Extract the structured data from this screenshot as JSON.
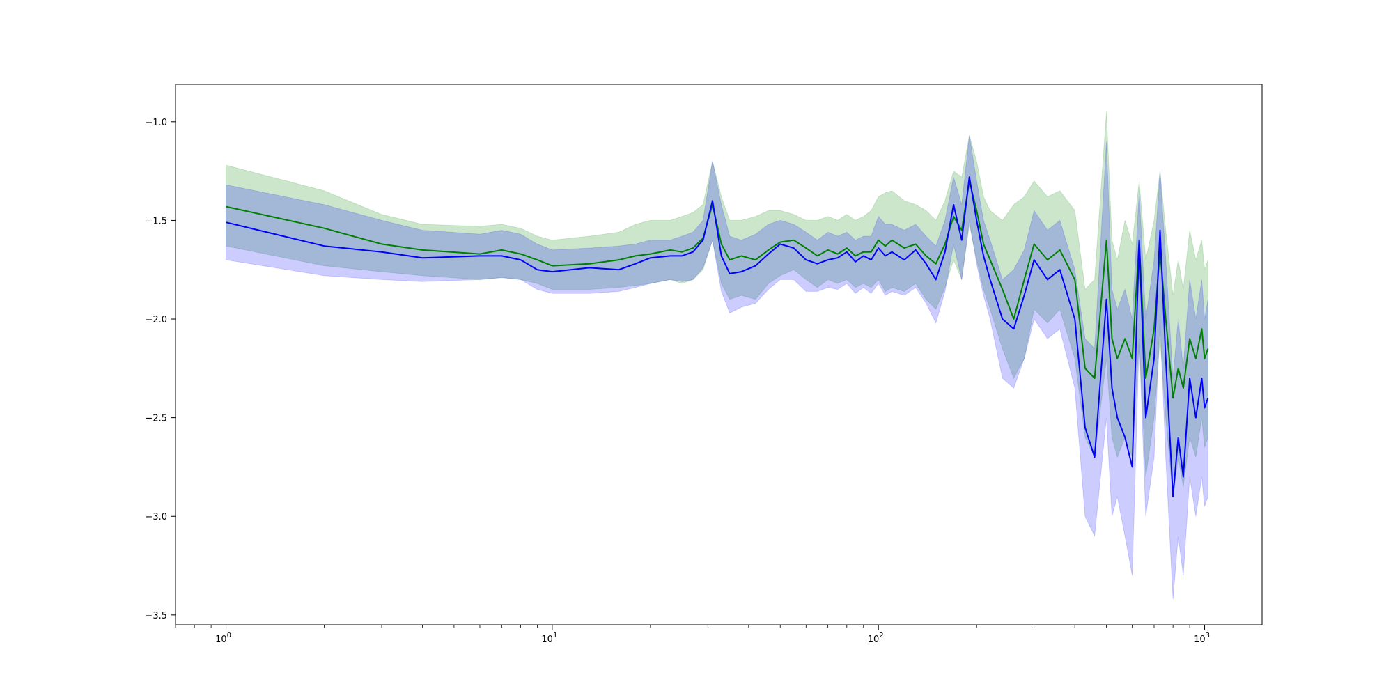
{
  "chart_data": {
    "type": "line",
    "title": "",
    "xlabel": "",
    "ylabel": "",
    "x_scale": "log",
    "xlim": [
      0.7,
      1500
    ],
    "ylim": [
      -3.55,
      -0.81
    ],
    "grid": false,
    "x_ticks": [
      {
        "value": 1,
        "base": "10",
        "exp": "0"
      },
      {
        "value": 10,
        "base": "10",
        "exp": "1"
      },
      {
        "value": 100,
        "base": "10",
        "exp": "2"
      },
      {
        "value": 1000,
        "base": "10",
        "exp": "3"
      }
    ],
    "y_ticks": [
      {
        "value": -1.0,
        "label": "−1.0"
      },
      {
        "value": -1.5,
        "label": "−1.5"
      },
      {
        "value": -2.0,
        "label": "−2.0"
      },
      {
        "value": -2.5,
        "label": "−2.5"
      },
      {
        "value": -3.0,
        "label": "−3.0"
      },
      {
        "value": -3.5,
        "label": "−3.5"
      }
    ],
    "series": [
      {
        "color": "#008000",
        "band_color": "#008000",
        "x": [
          1,
          2,
          3,
          4,
          6,
          7,
          8,
          9,
          10,
          13,
          16,
          18,
          20,
          23,
          25,
          27,
          29,
          31,
          33,
          35,
          38,
          42,
          46,
          50,
          55,
          60,
          65,
          70,
          75,
          80,
          85,
          90,
          95,
          100,
          105,
          110,
          120,
          130,
          140,
          150,
          160,
          170,
          180,
          190,
          200,
          210,
          220,
          240,
          260,
          280,
          300,
          330,
          360,
          400,
          430,
          460,
          500,
          520,
          540,
          570,
          600,
          630,
          660,
          700,
          730,
          760,
          800,
          830,
          860,
          900,
          940,
          980,
          1000,
          1024
        ],
        "mean": [
          -1.43,
          -1.54,
          -1.62,
          -1.65,
          -1.67,
          -1.65,
          -1.67,
          -1.7,
          -1.73,
          -1.72,
          -1.7,
          -1.68,
          -1.67,
          -1.65,
          -1.66,
          -1.64,
          -1.59,
          -1.42,
          -1.62,
          -1.7,
          -1.68,
          -1.7,
          -1.65,
          -1.61,
          -1.6,
          -1.64,
          -1.68,
          -1.65,
          -1.67,
          -1.64,
          -1.68,
          -1.66,
          -1.66,
          -1.6,
          -1.63,
          -1.6,
          -1.64,
          -1.62,
          -1.68,
          -1.72,
          -1.62,
          -1.48,
          -1.55,
          -1.3,
          -1.45,
          -1.62,
          -1.7,
          -1.85,
          -2.0,
          -1.8,
          -1.62,
          -1.7,
          -1.65,
          -1.8,
          -2.25,
          -2.3,
          -1.6,
          -2.1,
          -2.2,
          -2.1,
          -2.2,
          -1.6,
          -2.3,
          -2.05,
          -1.65,
          -2.0,
          -2.4,
          -2.25,
          -2.35,
          -2.1,
          -2.2,
          -2.05,
          -2.2,
          -2.15
        ],
        "upper": [
          -1.22,
          -1.35,
          -1.47,
          -1.52,
          -1.53,
          -1.52,
          -1.54,
          -1.58,
          -1.6,
          -1.58,
          -1.56,
          -1.52,
          -1.5,
          -1.5,
          -1.48,
          -1.46,
          -1.42,
          -1.2,
          -1.38,
          -1.5,
          -1.5,
          -1.48,
          -1.45,
          -1.45,
          -1.47,
          -1.5,
          -1.5,
          -1.48,
          -1.5,
          -1.47,
          -1.5,
          -1.48,
          -1.45,
          -1.38,
          -1.36,
          -1.35,
          -1.4,
          -1.42,
          -1.45,
          -1.5,
          -1.4,
          -1.25,
          -1.28,
          -1.07,
          -1.2,
          -1.38,
          -1.45,
          -1.5,
          -1.42,
          -1.38,
          -1.3,
          -1.38,
          -1.35,
          -1.45,
          -1.85,
          -1.8,
          -0.95,
          -1.6,
          -1.7,
          -1.5,
          -1.62,
          -1.3,
          -1.7,
          -1.5,
          -1.25,
          -1.55,
          -1.88,
          -1.7,
          -1.85,
          -1.55,
          -1.7,
          -1.6,
          -1.75,
          -1.7
        ],
        "lower": [
          -1.63,
          -1.73,
          -1.76,
          -1.78,
          -1.8,
          -1.79,
          -1.8,
          -1.82,
          -1.85,
          -1.85,
          -1.84,
          -1.83,
          -1.82,
          -1.8,
          -1.82,
          -1.8,
          -1.75,
          -1.6,
          -1.82,
          -1.9,
          -1.88,
          -1.9,
          -1.82,
          -1.78,
          -1.75,
          -1.8,
          -1.84,
          -1.8,
          -1.82,
          -1.8,
          -1.84,
          -1.82,
          -1.84,
          -1.8,
          -1.86,
          -1.84,
          -1.86,
          -1.82,
          -1.9,
          -1.95,
          -1.84,
          -1.7,
          -1.8,
          -1.52,
          -1.7,
          -1.85,
          -1.95,
          -2.15,
          -2.3,
          -2.2,
          -1.95,
          -2.02,
          -1.95,
          -2.2,
          -2.6,
          -2.7,
          -2.2,
          -2.6,
          -2.7,
          -2.6,
          -2.7,
          -2.1,
          -2.8,
          -2.5,
          -2.1,
          -2.5,
          -2.9,
          -2.7,
          -2.85,
          -2.6,
          -2.7,
          -2.5,
          -2.65,
          -2.6
        ]
      },
      {
        "color": "#0000ff",
        "band_color": "#0000ff",
        "x": [
          1,
          2,
          3,
          4,
          6,
          7,
          8,
          9,
          10,
          13,
          16,
          18,
          20,
          23,
          25,
          27,
          29,
          31,
          33,
          35,
          38,
          42,
          46,
          50,
          55,
          60,
          65,
          70,
          75,
          80,
          85,
          90,
          95,
          100,
          105,
          110,
          120,
          130,
          140,
          150,
          160,
          170,
          180,
          190,
          200,
          210,
          220,
          240,
          260,
          280,
          300,
          330,
          360,
          400,
          430,
          460,
          500,
          520,
          540,
          570,
          600,
          630,
          660,
          700,
          730,
          760,
          800,
          830,
          860,
          900,
          940,
          980,
          1000,
          1024
        ],
        "mean": [
          -1.51,
          -1.63,
          -1.66,
          -1.69,
          -1.68,
          -1.68,
          -1.7,
          -1.75,
          -1.76,
          -1.74,
          -1.75,
          -1.72,
          -1.69,
          -1.68,
          -1.68,
          -1.66,
          -1.6,
          -1.4,
          -1.68,
          -1.77,
          -1.76,
          -1.73,
          -1.67,
          -1.62,
          -1.64,
          -1.7,
          -1.72,
          -1.7,
          -1.69,
          -1.66,
          -1.71,
          -1.68,
          -1.7,
          -1.64,
          -1.68,
          -1.66,
          -1.7,
          -1.65,
          -1.72,
          -1.8,
          -1.66,
          -1.42,
          -1.6,
          -1.28,
          -1.5,
          -1.68,
          -1.8,
          -2.0,
          -2.05,
          -1.88,
          -1.7,
          -1.8,
          -1.75,
          -2.0,
          -2.55,
          -2.7,
          -1.9,
          -2.35,
          -2.5,
          -2.6,
          -2.75,
          -1.6,
          -2.5,
          -2.2,
          -1.55,
          -2.2,
          -2.9,
          -2.6,
          -2.8,
          -2.3,
          -2.5,
          -2.3,
          -2.45,
          -2.4
        ],
        "upper": [
          -1.32,
          -1.42,
          -1.5,
          -1.55,
          -1.57,
          -1.55,
          -1.57,
          -1.62,
          -1.65,
          -1.64,
          -1.63,
          -1.62,
          -1.6,
          -1.6,
          -1.58,
          -1.56,
          -1.5,
          -1.2,
          -1.42,
          -1.58,
          -1.6,
          -1.57,
          -1.52,
          -1.5,
          -1.52,
          -1.56,
          -1.6,
          -1.56,
          -1.58,
          -1.56,
          -1.6,
          -1.58,
          -1.58,
          -1.48,
          -1.52,
          -1.52,
          -1.55,
          -1.52,
          -1.58,
          -1.63,
          -1.5,
          -1.28,
          -1.42,
          -1.07,
          -1.3,
          -1.5,
          -1.6,
          -1.8,
          -1.75,
          -1.65,
          -1.45,
          -1.55,
          -1.5,
          -1.75,
          -2.1,
          -2.15,
          -1.1,
          -1.85,
          -1.95,
          -1.85,
          -2.0,
          -1.35,
          -2.0,
          -1.7,
          -1.25,
          -1.7,
          -2.3,
          -2.0,
          -2.25,
          -1.8,
          -2.0,
          -1.8,
          -2.0,
          -1.9
        ],
        "lower": [
          -1.7,
          -1.78,
          -1.8,
          -1.81,
          -1.8,
          -1.79,
          -1.8,
          -1.85,
          -1.87,
          -1.87,
          -1.86,
          -1.84,
          -1.82,
          -1.8,
          -1.81,
          -1.8,
          -1.74,
          -1.6,
          -1.86,
          -1.97,
          -1.94,
          -1.92,
          -1.85,
          -1.8,
          -1.8,
          -1.86,
          -1.86,
          -1.84,
          -1.85,
          -1.82,
          -1.87,
          -1.84,
          -1.87,
          -1.82,
          -1.88,
          -1.86,
          -1.88,
          -1.84,
          -1.92,
          -2.02,
          -1.86,
          -1.62,
          -1.8,
          -1.5,
          -1.72,
          -1.88,
          -2.0,
          -2.3,
          -2.35,
          -2.2,
          -2.0,
          -2.1,
          -2.05,
          -2.35,
          -3.0,
          -3.1,
          -2.5,
          -3.0,
          -2.9,
          -3.1,
          -3.3,
          -2.1,
          -3.0,
          -2.7,
          -2.0,
          -2.7,
          -3.42,
          -3.1,
          -3.3,
          -2.8,
          -3.0,
          -2.8,
          -2.95,
          -2.9
        ]
      }
    ]
  }
}
